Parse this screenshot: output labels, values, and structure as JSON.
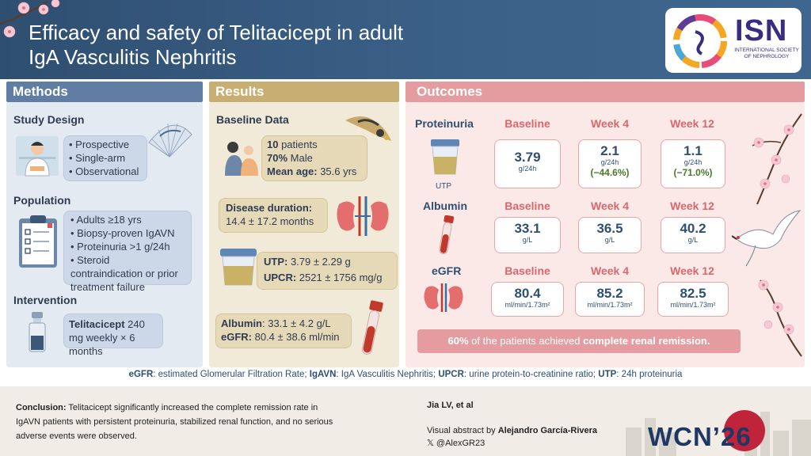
{
  "title_line1": "Efficacy and safety of Telitacicept in adult",
  "title_line2": "IgA Vasculitis Nephritis",
  "logo": {
    "name": "ISN",
    "subtitle": "INTERNATIONAL SOCIETY OF NEPHROLOGY"
  },
  "colors": {
    "header": "#2f4f71",
    "methods": "#607ea3",
    "results": "#c8ae72",
    "outcomes": "#e49ca0"
  },
  "methods": {
    "tab": "Methods",
    "study_design": {
      "heading": "Study Design",
      "items": [
        "Prospective",
        "Single-arm",
        "Observational"
      ]
    },
    "population": {
      "heading": "Population",
      "items": [
        "Adults ≥18 yrs",
        "Biopsy-proven IgAVN",
        "Proteinuria >1 g/24h",
        "Steroid contraindication or prior treatment failure"
      ]
    },
    "intervention": {
      "heading": "Intervention",
      "drug": "Telitacicept",
      "dose": " 240 mg weekly × 6 months"
    }
  },
  "results": {
    "tab": "Results",
    "heading": "Baseline Data",
    "patients_num": "10",
    "patients_label": " patients",
    "male_pct": "70%",
    "male_label": " Male",
    "age_label": "Mean age:",
    "age_value": " 35.6 yrs",
    "duration_label": "Disease duration:",
    "duration_value": "14.4 ± 17.2 months",
    "utp_label": "UTP:",
    "utp_value": " 3.79 ± 2.29 g",
    "upcr_label": "UPCR:",
    "upcr_value": " 2521 ± 1756 mg/g",
    "albumin_label": "Albumin",
    "albumin_value": ": 33.1 ± 4.2 g/L",
    "egfr_label": "eGFR:",
    "egfr_value": " 80.4 ± 38.6 ml/min"
  },
  "outcomes": {
    "tab": "Outcomes",
    "columns": [
      "Baseline",
      "Week 4",
      "Week 12"
    ],
    "rows": [
      {
        "name": "Proteinuria",
        "icon_label": "UTP",
        "cells": [
          {
            "value": "3.79",
            "unit": "g/24h",
            "change": ""
          },
          {
            "value": "2.1",
            "unit": "g/24h",
            "change": "(−44.6%)"
          },
          {
            "value": "1.1",
            "unit": "g/24h",
            "change": "(−71.0%)"
          }
        ]
      },
      {
        "name": "Albumin",
        "cells": [
          {
            "value": "33.1",
            "unit": "g/L"
          },
          {
            "value": "36.5",
            "unit": "g/L"
          },
          {
            "value": "40.2",
            "unit": "g/L"
          }
        ]
      },
      {
        "name": "eGFR",
        "cells": [
          {
            "value": "80.4",
            "unit": "ml/min/1.73m²"
          },
          {
            "value": "85.2",
            "unit": "ml/min/1.73m²"
          },
          {
            "value": "82.5",
            "unit": "ml/min/1.73m²"
          }
        ]
      }
    ],
    "remission_pct": "60%",
    "remission_mid": " of the patients achieved ",
    "remission_end": "complete renal remission."
  },
  "abbrev": {
    "t1": "eGFR",
    "d1": ": estimated Glomerular Filtration Rate; ",
    "t2": "IgAVN",
    "d2": ": IgA Vasculitis Nephritis; ",
    "t3": "UPCR",
    "d3": ": urine protein-to-creatinine ratio; ",
    "t4": "UTP",
    "d4": ": 24h proteinuria"
  },
  "footer": {
    "conclusion_label": "Conclusion:",
    "conclusion_text": " Telitacicept significantly increased the complete remission rate in IgAVN patients with persistent proteinuria, stabilized renal function, and no serious adverse events were observed.",
    "author": "Jia LV, et al",
    "credit_prefix": "Visual abstract by ",
    "credit_name": "Alejandro García-Rivera",
    "handle": "𝕏 @AlexGR23",
    "congress": "WCN’26"
  }
}
